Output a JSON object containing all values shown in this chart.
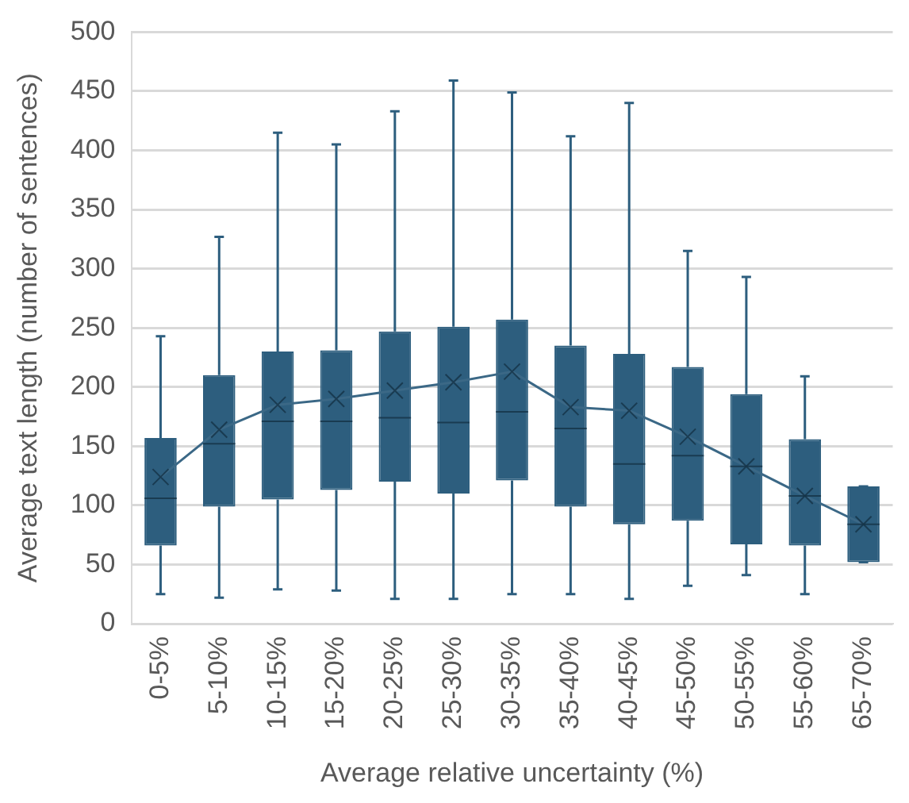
{
  "chart_data": {
    "type": "box",
    "xlabel": "Average relative uncertainty (%)",
    "ylabel": "Average text length (number of sentences)",
    "categories": [
      "0-5%",
      "5-10%",
      "10-15%",
      "15-20%",
      "20-25%",
      "25-30%",
      "30-35%",
      "35-40%",
      "40-45%",
      "45-50%",
      "50-55%",
      "55-60%",
      "65-70%"
    ],
    "ylim": [
      0,
      500
    ],
    "yticks": [
      0,
      50,
      100,
      150,
      200,
      250,
      300,
      350,
      400,
      450,
      500
    ],
    "grid": "y",
    "legend": false,
    "series": [
      {
        "type": "box",
        "color": "#2d5e7e",
        "boxes": [
          {
            "low": 25,
            "q1": 66,
            "median": 106,
            "q3": 157,
            "high": 243,
            "mean": 124
          },
          {
            "low": 22,
            "q1": 99,
            "median": 152,
            "q3": 210,
            "high": 327,
            "mean": 164
          },
          {
            "low": 29,
            "q1": 105,
            "median": 171,
            "q3": 230,
            "high": 415,
            "mean": 185
          },
          {
            "low": 28,
            "q1": 113,
            "median": 171,
            "q3": 231,
            "high": 405,
            "mean": 190
          },
          {
            "low": 21,
            "q1": 120,
            "median": 174,
            "q3": 247,
            "high": 433,
            "mean": 197
          },
          {
            "low": 21,
            "q1": 110,
            "median": 170,
            "q3": 251,
            "high": 459,
            "mean": 204
          },
          {
            "low": 25,
            "q1": 121,
            "median": 179,
            "q3": 257,
            "high": 449,
            "mean": 213
          },
          {
            "low": 25,
            "q1": 99,
            "median": 165,
            "q3": 235,
            "high": 412,
            "mean": 183
          },
          {
            "low": 21,
            "q1": 84,
            "median": 135,
            "q3": 228,
            "high": 440,
            "mean": 180
          },
          {
            "low": 32,
            "q1": 87,
            "median": 142,
            "q3": 217,
            "high": 315,
            "mean": 158
          },
          {
            "low": 41,
            "q1": 67,
            "median": 133,
            "q3": 194,
            "high": 293,
            "mean": 133
          },
          {
            "low": 25,
            "q1": 66,
            "median": 108,
            "q3": 156,
            "high": 209,
            "mean": 108
          },
          {
            "low": 52,
            "q1": 52,
            "median": 84,
            "q3": 116,
            "high": 116,
            "mean": 84
          }
        ]
      },
      {
        "type": "line",
        "color": "#3b6886",
        "marker": "none",
        "values": [
          124,
          164,
          185,
          190,
          197,
          204,
          213,
          183,
          180,
          158,
          133,
          108,
          84
        ]
      }
    ]
  }
}
